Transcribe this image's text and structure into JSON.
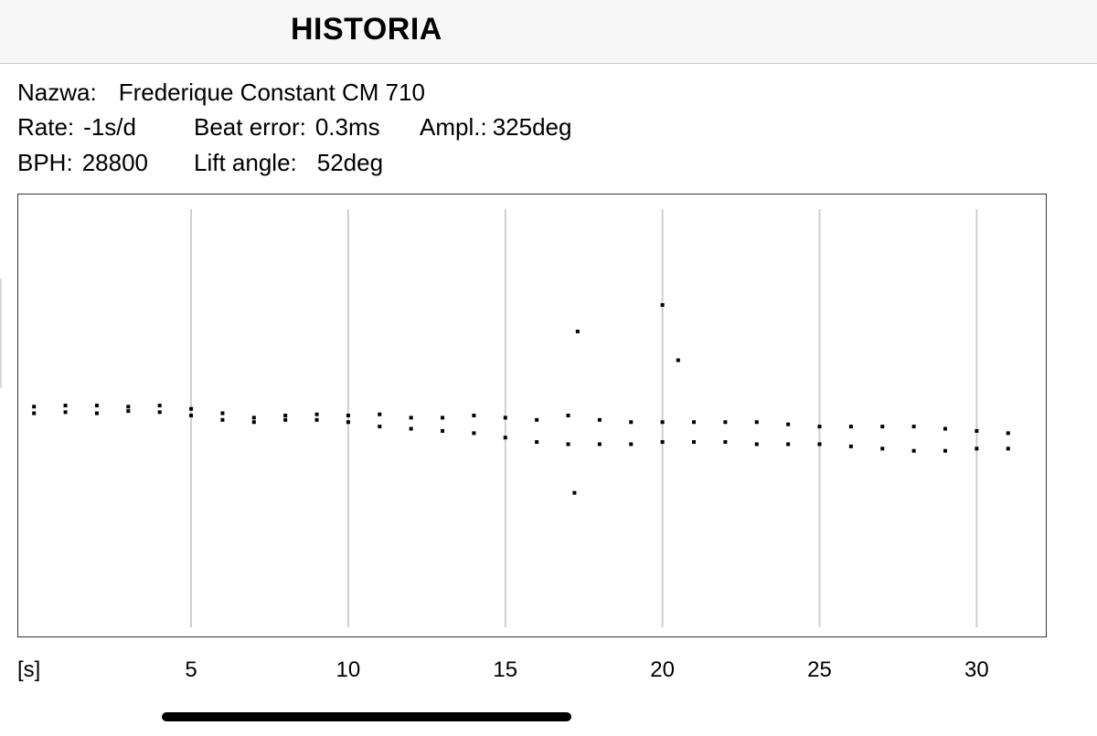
{
  "header": {
    "title": "HISTORIA"
  },
  "info": {
    "name_label": "Nazwa:",
    "name_value": "Frederique Constant CM 710",
    "rate_label": "Rate:",
    "rate_value": "-1s/d",
    "beat_label": "Beat error:",
    "beat_value": "0.3ms",
    "ampl_label": "Ampl.:",
    "ampl_value": "325deg",
    "bph_label": "BPH:",
    "bph_value": "28800",
    "lift_label": "Lift angle:",
    "lift_value": "52deg"
  },
  "chart_data": {
    "type": "scatter",
    "xlabel": "[s]",
    "xlim": [
      -0.5,
      32.2
    ],
    "ylim": [
      -1,
      1
    ],
    "grid": true,
    "x_ticks": [
      5,
      10,
      15,
      20,
      25,
      30
    ],
    "tick_labels": [
      "5",
      "10",
      "15",
      "20",
      "25",
      "30"
    ],
    "series": [
      {
        "x": [
          0.0,
          1.0,
          2.0,
          3.0,
          4.0,
          5.0,
          6.0,
          7.0,
          8.0,
          9.0,
          10.0,
          11.0,
          12.0,
          13.0,
          14.0,
          15.0,
          16.0,
          17.0,
          18.0,
          19.0,
          20.0,
          21.0,
          22.0,
          23.0,
          24.0,
          25.0,
          26.0,
          27.0,
          28.0,
          29.0,
          30.0,
          31.0
        ],
        "y": [
          0.04,
          0.045,
          0.045,
          0.04,
          0.045,
          0.03,
          0.01,
          -0.01,
          0.0,
          0.005,
          0.0,
          0.005,
          -0.01,
          -0.01,
          0.0,
          -0.01,
          -0.02,
          0.0,
          -0.02,
          -0.03,
          -0.03,
          -0.03,
          -0.03,
          -0.03,
          -0.04,
          -0.05,
          -0.05,
          -0.05,
          -0.05,
          -0.06,
          -0.07,
          -0.08
        ]
      },
      {
        "x": [
          0.0,
          1.0,
          2.0,
          3.0,
          4.0,
          5.0,
          6.0,
          7.0,
          8.0,
          9.0,
          10.0,
          11.0,
          12.0,
          13.0,
          14.0,
          15.0,
          16.0,
          17.0,
          18.0,
          19.0,
          20.0,
          21.0,
          22.0,
          23.0,
          24.0,
          25.0,
          26.0,
          27.0,
          28.0,
          29.0,
          30.0,
          31.0
        ],
        "y": [
          0.01,
          0.015,
          0.01,
          0.02,
          0.015,
          0.0,
          -0.02,
          -0.03,
          -0.02,
          -0.02,
          -0.03,
          -0.05,
          -0.06,
          -0.07,
          -0.08,
          -0.1,
          -0.12,
          -0.13,
          -0.13,
          -0.13,
          -0.12,
          -0.12,
          -0.12,
          -0.13,
          -0.13,
          -0.13,
          -0.14,
          -0.15,
          -0.16,
          -0.16,
          -0.15,
          -0.15
        ]
      },
      {
        "x": [
          17.2,
          17.3,
          20.0,
          20.5
        ],
        "y": [
          -0.35,
          0.38,
          0.5,
          0.25
        ]
      }
    ]
  }
}
